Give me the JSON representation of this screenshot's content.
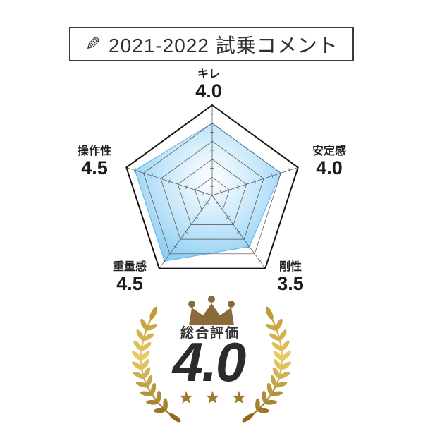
{
  "page": {
    "background": "#ffffff",
    "text_color": "#2f2f2f"
  },
  "header": {
    "icon": "pencil-icon",
    "icon_glyph": "✎",
    "title": "2021-2022 試乗コメント"
  },
  "chart_data": {
    "type": "radar",
    "categories": [
      "キレ",
      "安定感",
      "剛性",
      "重量感",
      "操作性"
    ],
    "values": [
      4.0,
      4.0,
      3.5,
      4.5,
      4.5
    ],
    "values_display": [
      "4.0",
      "4.0",
      "3.5",
      "4.5",
      "4.5"
    ],
    "scale_max": 5,
    "ring_step": 1,
    "tick_step": 0.5,
    "legend": "none",
    "grid_color": "#4d4d4d",
    "outline_color": "#141414",
    "fill_center": "#ffffff",
    "fill_mid": "#c8e8fa",
    "fill_edge": "#7bc5f0",
    "fill_stroke": "#5fb4e8"
  },
  "award": {
    "label": "総合評価",
    "value": "4.0",
    "stars": "★★★",
    "star_count": 3,
    "crown_color": "#8a6a38",
    "star_color": "#9d7b2b",
    "gold_light": "#eacd67",
    "gold_mid": "#c09a38",
    "gold_dark": "#8d671c"
  }
}
